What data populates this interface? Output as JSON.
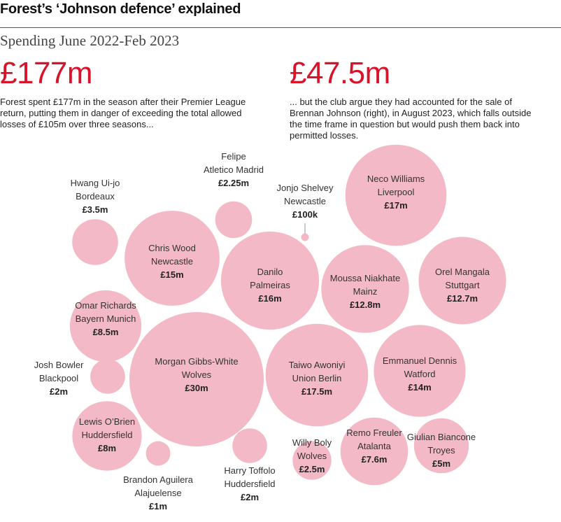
{
  "header": {
    "title": "Forest’s ‘Johnson defence’ explained",
    "subtitle": "Spending June 2022-Feb 2023"
  },
  "stats": [
    {
      "big": "£177m",
      "text": "Forest spent £177m in the season after their Premier League\nreturn, putting them in danger of exceeding the total allowed\nlosses of £105m over three seasons..."
    },
    {
      "big": "£47.5m",
      "text": "... but the club argue they had accounted for the sale of\nBrennan Johnson (right), in August 2023, which falls outside\nthe time frame in question but would push them back into\npermitted losses."
    }
  ],
  "chart_data": {
    "type": "bubble",
    "title": "Spending June 2022-Feb 2023",
    "unit": "£m",
    "players": [
      {
        "name": "Morgan Gibbs-White",
        "club": "Wolves",
        "label": "£30m",
        "value": 30
      },
      {
        "name": "Taiwo Awoniyi",
        "club": "Union Berlin",
        "label": "£17.5m",
        "value": 17.5
      },
      {
        "name": "Neco Williams",
        "club": "Liverpool",
        "label": "£17m",
        "value": 17
      },
      {
        "name": "Danilo",
        "club": "Palmeiras",
        "label": "£16m",
        "value": 16
      },
      {
        "name": "Chris Wood",
        "club": "Newcastle",
        "label": "£15m",
        "value": 15
      },
      {
        "name": "Emmanuel Dennis",
        "club": "Watford",
        "label": "£14m",
        "value": 14
      },
      {
        "name": "Moussa Niakhate",
        "club": "Mainz",
        "label": "£12.8m",
        "value": 12.8
      },
      {
        "name": "Orel Mangala",
        "club": "Stuttgart",
        "label": "£12.7m",
        "value": 12.7
      },
      {
        "name": "Omar Richards",
        "club": "Bayern Munich",
        "label": "£8.5m",
        "value": 8.5
      },
      {
        "name": "Lewis O’Brien",
        "club": "Huddersfield",
        "label": "£8m",
        "value": 8
      },
      {
        "name": "Remo Freuler",
        "club": "Atalanta",
        "label": "£7.6m",
        "value": 7.6
      },
      {
        "name": "Giulian Biancone",
        "club": "Troyes",
        "label": "£5m",
        "value": 5
      },
      {
        "name": "Hwang Ui-jo",
        "club": "Bordeaux",
        "label": "£3.5m",
        "value": 3.5
      },
      {
        "name": "Willy Boly",
        "club": "Wolves",
        "label": "£2.5m",
        "value": 2.5
      },
      {
        "name": "Felipe",
        "club": "Atletico Madrid",
        "label": "£2.25m",
        "value": 2.25
      },
      {
        "name": "Josh Bowler",
        "club": "Blackpool",
        "label": "£2m",
        "value": 2
      },
      {
        "name": "Harry Toffolo",
        "club": "Huddersfield",
        "label": "£2m",
        "value": 2
      },
      {
        "name": "Brandon Aguilera",
        "club": "Alajuelense",
        "label": "£1m",
        "value": 1
      },
      {
        "name": "Jonjo Shelvey",
        "club": "Newcastle",
        "label": "£100k",
        "value": 0.1
      }
    ]
  },
  "colors": {
    "accent": "#d7142a",
    "bubble": "#f4b9c6"
  }
}
